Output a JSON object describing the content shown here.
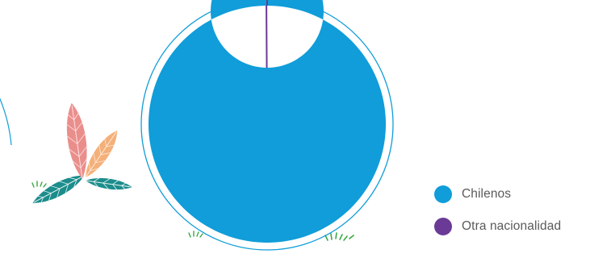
{
  "chart_data": {
    "type": "pie",
    "style": "donut",
    "title": "",
    "categories": [
      "Chilenos",
      "Otra nacionalidad"
    ],
    "values": [
      99.9,
      0.1
    ],
    "colors": [
      "#109dd9",
      "#6b3a96"
    ],
    "legend_position": "right"
  },
  "decor": {
    "ring_color": "#109dd9",
    "left_plant_icon": "leaf-plant-icon",
    "grass_icon": "grass-tuft-icon"
  }
}
